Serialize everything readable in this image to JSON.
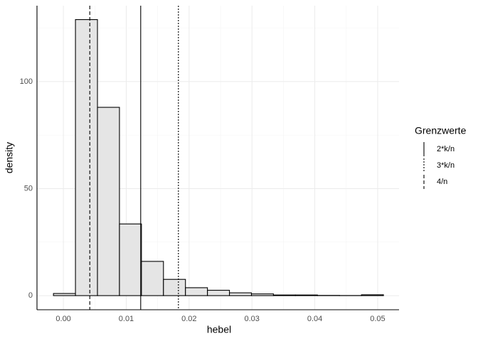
{
  "chart_data": {
    "type": "histogram",
    "x_label": "hebel",
    "y_label": "density",
    "bins": [
      -0.00158,
      0.00192,
      0.00542,
      0.00892,
      0.01242,
      0.01592,
      0.01942,
      0.02292,
      0.02642,
      0.02992,
      0.03342,
      0.03692,
      0.04042,
      0.04392,
      0.04742,
      0.05092
    ],
    "values": [
      1,
      129,
      88,
      33.5,
      16,
      7.6,
      3.7,
      2.5,
      1.3,
      0.8,
      0.3,
      0.3,
      0.1,
      0.05,
      0.4
    ],
    "color": "#e5e5e5",
    "edge_color": "#000000",
    "xlim": [
      -0.0042,
      0.0534
    ],
    "ylim": [
      -6.6,
      135.5
    ],
    "xticks": [
      {
        "value": 0,
        "label": "0.00"
      },
      {
        "value": 0.01,
        "label": "0.01"
      },
      {
        "value": 0.02,
        "label": "0.02"
      },
      {
        "value": 0.03,
        "label": "0.03"
      },
      {
        "value": 0.04,
        "label": "0.04"
      },
      {
        "value": 0.05,
        "label": "0.05"
      }
    ],
    "yticks": [
      0,
      50,
      100
    ],
    "xminor": [
      0.005,
      0.015,
      0.025,
      0.035,
      0.045
    ],
    "yminor": [
      25,
      75,
      125
    ],
    "grid": true,
    "legend_title": "Grenzwerte",
    "legend_position": "right",
    "vlines": [
      {
        "name": "2*k/n",
        "value": 0.0123,
        "linetype": "solid"
      },
      {
        "name": "3*k/n",
        "value": 0.0183,
        "linetype": "dotted"
      },
      {
        "name": "4/n",
        "value": 0.0042,
        "linetype": "dashed"
      }
    ]
  }
}
